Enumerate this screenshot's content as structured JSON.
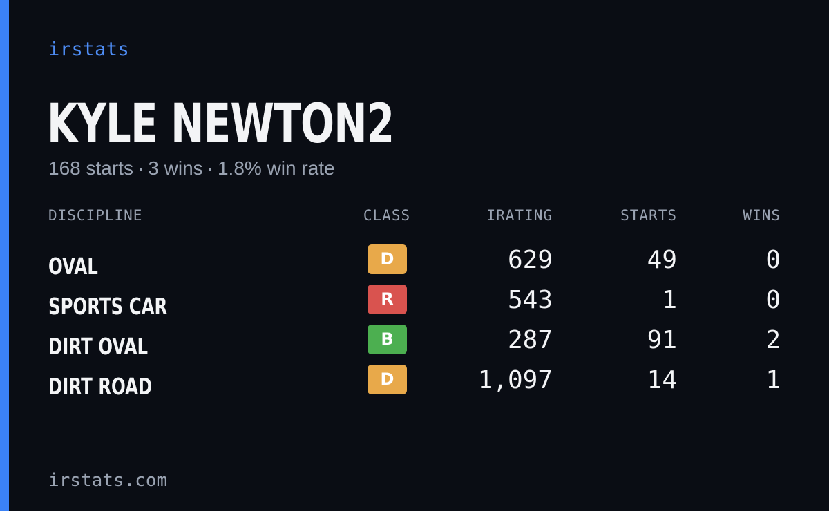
{
  "brand": "irstats",
  "player": {
    "name": "KYLE NEWTON2",
    "starts": "168 starts",
    "wins": "3 wins",
    "win_rate": "1.8% win rate",
    "separator": "·"
  },
  "table": {
    "headers": {
      "discipline": "DISCIPLINE",
      "class": "CLASS",
      "irating": "IRATING",
      "starts": "STARTS",
      "wins": "WINS"
    },
    "rows": [
      {
        "discipline": "OVAL",
        "class": "D",
        "class_color": "#e8a94a",
        "irating": "629",
        "starts": "49",
        "wins": "0"
      },
      {
        "discipline": "SPORTS CAR",
        "class": "R",
        "class_color": "#d9534f",
        "irating": "543",
        "starts": "1",
        "wins": "0"
      },
      {
        "discipline": "DIRT OVAL",
        "class": "B",
        "class_color": "#4caf50",
        "irating": "287",
        "starts": "91",
        "wins": "2"
      },
      {
        "discipline": "DIRT ROAD",
        "class": "D",
        "class_color": "#e8a94a",
        "irating": "1,097",
        "starts": "14",
        "wins": "1"
      }
    ]
  },
  "footer": "irstats.com",
  "colors": {
    "accent": "#3b82f6",
    "background": "#0a0d14"
  }
}
